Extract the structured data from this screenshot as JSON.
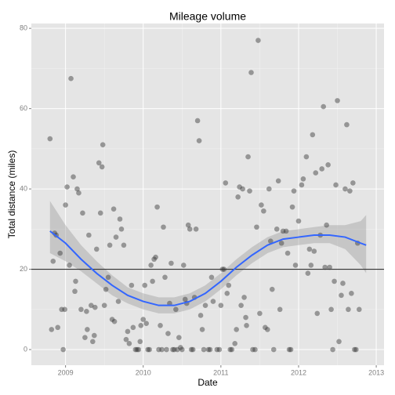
{
  "chart_data": {
    "type": "scatter",
    "title": "Mileage volume",
    "x_label": "Date",
    "y_label": "Total distance (miles)",
    "xlim": [
      2008.56,
      2013.1
    ],
    "ylim": [
      -3.9,
      81.2
    ],
    "xticks": [
      2009,
      2010,
      2011,
      2012,
      2013
    ],
    "yticks": [
      0,
      20,
      40,
      60,
      80
    ],
    "grid": true,
    "point_color": "#333333",
    "x": [
      2008.8,
      2008.82,
      2008.84,
      2008.86,
      2008.88,
      2008.9,
      2008.93,
      2008.95,
      2008.97,
      2008.99,
      2009.0,
      2009.02,
      2009.05,
      2009.07,
      2009.1,
      2009.12,
      2009.13,
      2009.15,
      2009.17,
      2009.2,
      2009.22,
      2009.25,
      2009.27,
      2009.28,
      2009.3,
      2009.33,
      2009.35,
      2009.37,
      2009.38,
      2009.4,
      2009.43,
      2009.45,
      2009.47,
      2009.48,
      2009.5,
      2009.52,
      2009.55,
      2009.57,
      2009.6,
      2009.62,
      2009.63,
      2009.65,
      2009.68,
      2009.7,
      2009.72,
      2009.75,
      2009.78,
      2009.8,
      2009.82,
      2009.85,
      2009.87,
      2009.9,
      2009.92,
      2009.94,
      2009.96,
      2009.97,
      2010.0,
      2010.02,
      2010.04,
      2010.06,
      2010.08,
      2010.1,
      2010.12,
      2010.14,
      2010.16,
      2010.18,
      2010.2,
      2010.22,
      2010.24,
      2010.26,
      2010.28,
      2010.3,
      2010.32,
      2010.34,
      2010.36,
      2010.38,
      2010.4,
      2010.42,
      2010.44,
      2010.46,
      2010.48,
      2010.5,
      2010.52,
      2010.54,
      2010.56,
      2010.58,
      2010.6,
      2010.62,
      2010.64,
      2010.66,
      2010.68,
      2010.7,
      2010.72,
      2010.74,
      2010.76,
      2010.78,
      2010.8,
      2010.84,
      2010.86,
      2010.88,
      2010.9,
      2010.95,
      2010.98,
      2011.0,
      2011.02,
      2011.04,
      2011.06,
      2011.08,
      2011.1,
      2011.12,
      2011.14,
      2011.18,
      2011.2,
      2011.22,
      2011.24,
      2011.26,
      2011.28,
      2011.3,
      2011.32,
      2011.33,
      2011.35,
      2011.37,
      2011.39,
      2011.41,
      2011.44,
      2011.46,
      2011.48,
      2011.5,
      2011.52,
      2011.55,
      2011.57,
      2011.6,
      2011.62,
      2011.64,
      2011.66,
      2011.68,
      2011.72,
      2011.74,
      2011.76,
      2011.78,
      2011.8,
      2011.84,
      2011.86,
      2011.88,
      2011.9,
      2011.92,
      2011.94,
      2011.96,
      2012.0,
      2012.04,
      2012.06,
      2012.1,
      2012.12,
      2012.14,
      2012.16,
      2012.18,
      2012.2,
      2012.22,
      2012.24,
      2012.28,
      2012.3,
      2012.32,
      2012.34,
      2012.36,
      2012.38,
      2012.4,
      2012.42,
      2012.44,
      2012.46,
      2012.48,
      2012.5,
      2012.52,
      2012.55,
      2012.57,
      2012.6,
      2012.62,
      2012.64,
      2012.66,
      2012.68,
      2012.7,
      2012.72,
      2012.74,
      2012.76,
      2012.78
    ],
    "values": [
      52.5,
      5,
      22,
      29,
      28.5,
      5.5,
      24,
      10,
      0,
      10,
      36,
      40.5,
      21,
      67.5,
      43,
      14.5,
      17,
      40,
      39,
      10,
      34,
      3,
      9.5,
      5,
      28.5,
      11,
      2,
      3.5,
      10.5,
      25,
      46.5,
      34,
      45.5,
      51,
      11,
      15,
      18,
      26,
      7.5,
      35,
      7,
      28,
      12,
      32.5,
      30,
      26,
      2.5,
      4.5,
      1.5,
      16,
      5.5,
      0,
      0,
      0,
      2,
      6,
      7.5,
      16,
      6.5,
      0,
      0,
      21,
      17,
      22.5,
      23,
      35.5,
      0,
      6,
      0,
      30.5,
      18,
      0,
      4,
      11.5,
      21.5,
      0,
      0,
      10,
      0,
      3,
      0.5,
      0,
      21,
      12.5,
      11.5,
      31,
      30,
      0,
      0,
      13,
      30,
      57,
      52,
      8.5,
      5,
      0,
      11,
      0,
      0,
      18,
      12,
      0,
      0,
      11,
      20,
      20,
      41.5,
      14,
      16,
      0,
      0,
      1.5,
      5,
      38,
      40.5,
      11,
      40,
      13,
      8,
      6,
      48,
      39.5,
      69,
      0,
      0,
      30.5,
      77,
      9,
      36,
      34.5,
      5.5,
      5,
      40,
      27,
      15,
      0,
      30,
      42,
      10,
      26.5,
      29.5,
      29.5,
      24,
      0,
      0,
      35.5,
      39.5,
      21,
      32,
      41,
      42.5,
      48,
      19,
      25,
      21,
      53.5,
      24.5,
      44,
      9,
      28.5,
      45,
      60.5,
      20.5,
      31,
      46,
      20.5,
      10,
      0,
      17,
      41,
      62,
      2,
      13.5,
      16.5,
      40,
      56,
      10,
      39.5,
      14,
      41.5,
      0,
      0,
      26.5,
      10
    ],
    "smooth": {
      "color": "#3366ff",
      "band_color": "#999999",
      "x": [
        2008.8,
        2009.0,
        2009.2,
        2009.4,
        2009.6,
        2009.8,
        2010.0,
        2010.2,
        2010.4,
        2010.6,
        2010.8,
        2011.0,
        2011.2,
        2011.4,
        2011.6,
        2011.8,
        2012.0,
        2012.2,
        2012.4,
        2012.6,
        2012.8,
        2012.87
      ],
      "values": [
        29.5,
        26.5,
        22.5,
        19,
        16,
        13.5,
        12,
        11,
        11,
        12,
        14,
        17,
        20.5,
        23.5,
        26,
        27.5,
        28,
        28.5,
        28.5,
        28,
        26.5,
        26
      ],
      "lower": [
        24,
        22,
        19.5,
        16.5,
        13.5,
        11.5,
        10,
        9,
        9,
        10,
        12,
        15,
        18.5,
        21.5,
        24,
        25.5,
        26,
        26.5,
        26.5,
        25,
        21,
        19
      ],
      "upper": [
        37,
        31,
        26,
        22,
        18.5,
        15.5,
        14,
        13,
        13,
        14,
        16,
        19,
        22.5,
        25.5,
        28,
        29.5,
        30,
        30.5,
        31,
        31,
        32,
        33.5
      ]
    },
    "hline": 20,
    "hline_color": "#333333"
  }
}
